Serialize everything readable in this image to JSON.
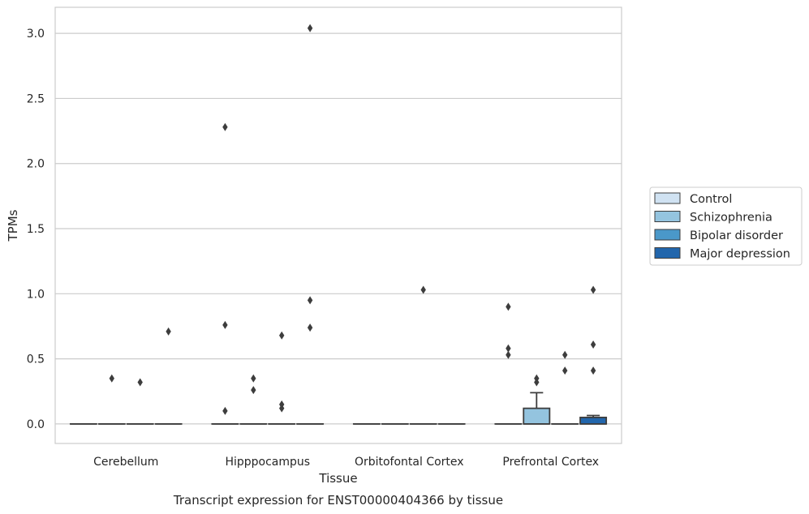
{
  "chart_data": {
    "type": "box",
    "caption": "Transcript expression for ENST00000404366 by tissue",
    "xlabel": "Tissue",
    "ylabel": "TPMs",
    "ylim": [
      -0.15,
      3.2
    ],
    "yticks": [
      "0.0",
      "0.5",
      "1.0",
      "1.5",
      "2.0",
      "2.5",
      "3.0"
    ],
    "grid": "horizontal",
    "legend_position": "right",
    "categories": [
      "Cerebellum",
      "Hipppocampus",
      "Orbitofontal Cortex",
      "Prefrontal Cortex"
    ],
    "series": [
      {
        "name": "Control",
        "color": "#d0e2f2"
      },
      {
        "name": "Schizophrenia",
        "color": "#94c4df"
      },
      {
        "name": "Bipolar disorder",
        "color": "#4a98c9"
      },
      {
        "name": "Major depression",
        "color": "#2266ac"
      }
    ],
    "boxes": [
      [
        {
          "q1": 0,
          "median": 0,
          "q3": 0,
          "whisker_high": 0,
          "outliers": []
        },
        {
          "q1": 0,
          "median": 0,
          "q3": 0,
          "whisker_high": 0,
          "outliers": [
            0.35
          ]
        },
        {
          "q1": 0,
          "median": 0,
          "q3": 0,
          "whisker_high": 0,
          "outliers": [
            0.32
          ]
        },
        {
          "q1": 0,
          "median": 0,
          "q3": 0,
          "whisker_high": 0,
          "outliers": [
            0.71
          ]
        }
      ],
      [
        {
          "q1": 0,
          "median": 0,
          "q3": 0,
          "whisker_high": 0,
          "outliers": [
            2.28,
            0.76,
            0.1
          ]
        },
        {
          "q1": 0,
          "median": 0,
          "q3": 0,
          "whisker_high": 0,
          "outliers": [
            0.35,
            0.26
          ]
        },
        {
          "q1": 0,
          "median": 0,
          "q3": 0,
          "whisker_high": 0,
          "outliers": [
            0.68,
            0.15,
            0.12
          ]
        },
        {
          "q1": 0,
          "median": 0,
          "q3": 0,
          "whisker_high": 0,
          "outliers": [
            3.04,
            0.95,
            0.74
          ]
        }
      ],
      [
        {
          "q1": 0,
          "median": 0,
          "q3": 0,
          "whisker_high": 0,
          "outliers": []
        },
        {
          "q1": 0,
          "median": 0,
          "q3": 0,
          "whisker_high": 0,
          "outliers": []
        },
        {
          "q1": 0,
          "median": 0,
          "q3": 0,
          "whisker_high": 0,
          "outliers": [
            1.03
          ]
        },
        {
          "q1": 0,
          "median": 0,
          "q3": 0,
          "whisker_high": 0,
          "outliers": []
        }
      ],
      [
        {
          "q1": 0,
          "median": 0,
          "q3": 0,
          "whisker_high": 0,
          "outliers": [
            0.9,
            0.58,
            0.53
          ]
        },
        {
          "q1": 0,
          "median": 0,
          "q3": 0.12,
          "whisker_high": 0.24,
          "outliers": [
            0.35,
            0.32
          ]
        },
        {
          "q1": 0,
          "median": 0,
          "q3": 0,
          "whisker_high": 0,
          "outliers": [
            0.53,
            0.41
          ]
        },
        {
          "q1": 0,
          "median": 0,
          "q3": 0.05,
          "whisker_high": 0.065,
          "outliers": [
            1.03,
            0.61,
            0.41
          ]
        }
      ]
    ]
  }
}
